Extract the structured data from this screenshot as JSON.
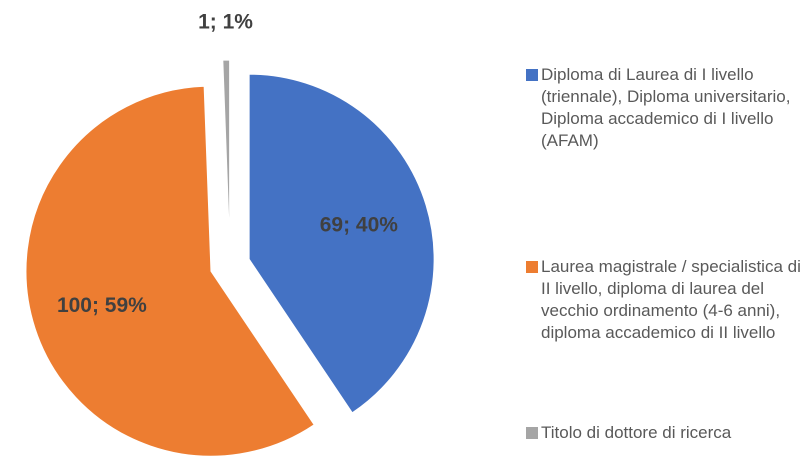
{
  "chart_data": {
    "type": "pie",
    "categories": [
      "Diploma di Laurea di I livello (triennale), Diploma universitario, Diploma accademico di I livello (AFAM)",
      "Laurea magistrale / specialistica di II livello, diploma di laurea del vecchio ordinamento (4-6 anni), diploma accademico di II livello",
      "Titolo di dottore di ricerca"
    ],
    "values": [
      69,
      100,
      1
    ],
    "value_labels": [
      "69; 40%",
      "100; 59%",
      "1; 1%"
    ],
    "colors": [
      "#4472c4",
      "#ed7d31",
      "#a5a5a5"
    ],
    "legend": "right"
  }
}
